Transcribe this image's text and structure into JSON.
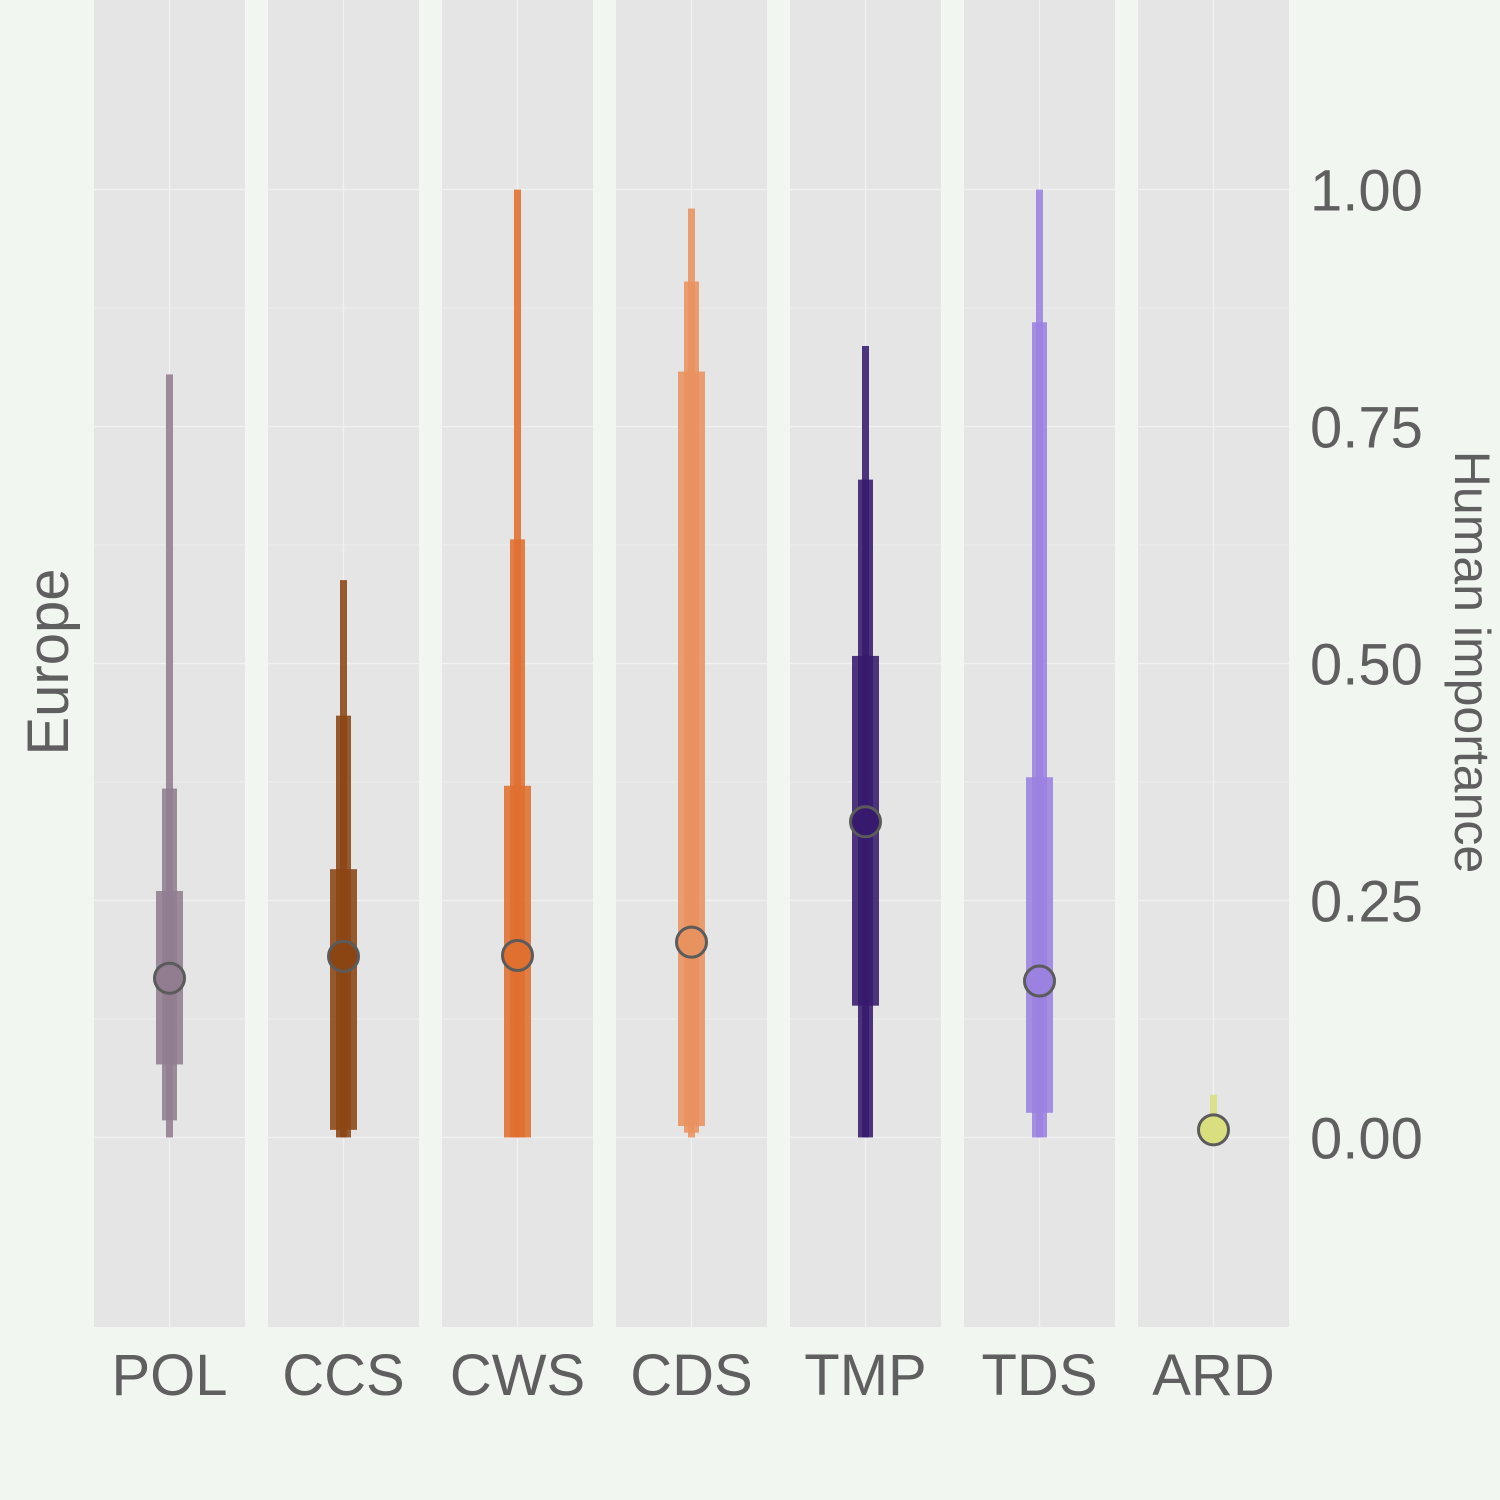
{
  "chart_data": {
    "type": "interval",
    "panel_label": "Europe",
    "ylabel": "Human importance",
    "ylim": [
      -0.2,
      1.2
    ],
    "yticks": [
      0,
      0.25,
      0.5,
      0.75,
      1
    ],
    "ytick_labels": [
      "0.00",
      "0.25",
      "0.50",
      "0.75",
      "1.00"
    ],
    "grid": true,
    "categories": [
      "POL",
      "CCS",
      "CWS",
      "CDS",
      "TMP",
      "TDS",
      "ARD"
    ],
    "series": [
      {
        "category": "POL",
        "color": "#917d8f",
        "point": 0.168,
        "inner": [
          0.077,
          0.26
        ],
        "middle": [
          0.018,
          0.368
        ],
        "outer": [
          0.0,
          0.805
        ]
      },
      {
        "category": "CCS",
        "color": "#8b4513",
        "point": 0.191,
        "inner": [
          0.008,
          0.283
        ],
        "middle": [
          0.0,
          0.445
        ],
        "outer": [
          0.0,
          0.588
        ]
      },
      {
        "category": "CWS",
        "color": "#e07030",
        "point": 0.192,
        "inner": [
          0.0,
          0.371
        ],
        "middle": [
          0.0,
          0.631
        ],
        "outer": [
          0.0,
          1.0
        ]
      },
      {
        "category": "CDS",
        "color": "#e8925f",
        "point": 0.206,
        "inner": [
          0.012,
          0.808
        ],
        "middle": [
          0.005,
          0.903
        ],
        "outer": [
          0.0,
          0.98
        ]
      },
      {
        "category": "TMP",
        "color": "#371a6d",
        "point": 0.333,
        "inner": [
          0.139,
          0.508
        ],
        "middle": [
          0.0,
          0.694
        ],
        "outer": [
          0.0,
          0.835
        ]
      },
      {
        "category": "TDS",
        "color": "#9b82e0",
        "point": 0.165,
        "inner": [
          0.026,
          0.38
        ],
        "middle": [
          0.0,
          0.86
        ],
        "outer": [
          0.0,
          1.0
        ]
      },
      {
        "category": "ARD",
        "color": "#d9df7e",
        "point": 0.008,
        "inner": [
          0.0,
          0.0
        ],
        "middle": [
          0.0,
          0.0
        ],
        "outer": [
          0.0,
          0.045
        ]
      }
    ]
  }
}
